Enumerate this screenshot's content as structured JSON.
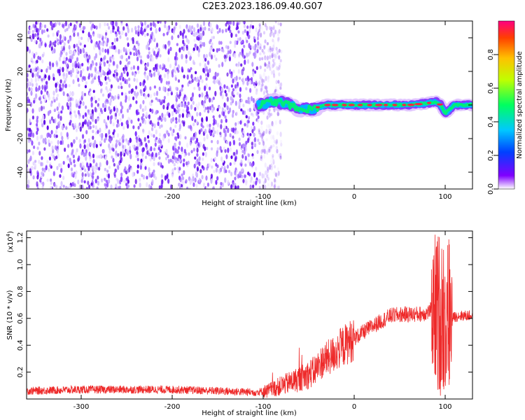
{
  "title": "C2E3.2023.186.09.40.G07",
  "colors": {
    "spectrogram_noise": "#7b2bff",
    "snr_line": "#ee2a2a"
  },
  "chart_data": [
    {
      "type": "heatmap",
      "xlabel": "Height of straight line (km)",
      "ylabel": "Frequency (Hz)",
      "xlim": [
        -360,
        130
      ],
      "ylim": [
        -50,
        50
      ],
      "xticks": [
        -300,
        -200,
        -100,
        0,
        100
      ],
      "yticks": [
        -40,
        -20,
        0,
        20,
        40
      ],
      "colorbar": {
        "label": "Normalized spectral amplitude",
        "range": [
          0,
          1
        ],
        "ticks": [
          "0.0",
          "0.2",
          "0.4",
          "0.6",
          "0.8"
        ],
        "colormap": "rainbow"
      },
      "noise_region_x": [
        -360,
        -90
      ],
      "signal_track": {
        "x": [
          -105,
          -90,
          -75,
          -60,
          -45,
          -30,
          -15,
          0,
          20,
          40,
          60,
          80,
          90,
          95,
          100,
          110,
          130
        ],
        "freq": [
          0,
          2,
          1,
          -3,
          -2,
          0,
          0,
          0,
          0,
          0,
          0,
          1,
          2,
          0,
          -5,
          0,
          0
        ]
      }
    },
    {
      "type": "line",
      "xlabel": "Height of straight line (km)",
      "ylabel": "SNR (10 * v/v)",
      "yscale_label": "(x10",
      "yscale_exp": "4",
      "xlim": [
        -360,
        130
      ],
      "ylim": [
        0,
        1.25
      ],
      "xticks": [
        -300,
        -200,
        -100,
        0,
        100
      ],
      "yticks": [
        0.2,
        0.4,
        0.6,
        0.8,
        1.0,
        1.2
      ],
      "ytick_labels": [
        "0.2",
        "0.4",
        "0.6",
        "0.8",
        "1.0",
        "1.2"
      ],
      "series": [
        {
          "x": [
            -360,
            -300,
            -250,
            -200,
            -150,
            -110,
            -95,
            -80,
            -60,
            -45,
            -35,
            -25,
            -15,
            0,
            15,
            30,
            40,
            55,
            70,
            80,
            88,
            92,
            95,
            98,
            102,
            106,
            115,
            130
          ],
          "y": [
            0.06,
            0.07,
            0.07,
            0.07,
            0.06,
            0.05,
            0.06,
            0.1,
            0.15,
            0.2,
            0.28,
            0.32,
            0.38,
            0.45,
            0.52,
            0.58,
            0.62,
            0.63,
            0.63,
            0.64,
            0.68,
            0.6,
            0.85,
            0.45,
            0.75,
            0.6,
            0.62,
            0.62
          ]
        }
      ]
    }
  ]
}
